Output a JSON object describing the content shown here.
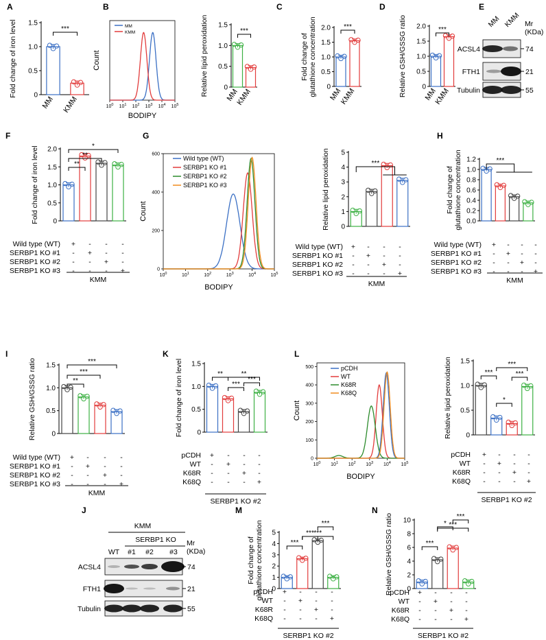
{
  "chart_data": [
    {
      "id": "A",
      "type": "bar",
      "ylabel": "Fold change of iron level",
      "yticks": [
        0,
        0.5,
        1.0,
        1.5
      ],
      "ylim": [
        0,
        1.5
      ],
      "categories": [
        "MM",
        "KMM"
      ],
      "values": [
        1.0,
        0.24
      ],
      "colors": [
        "#3a6fc4",
        "#e23b3b"
      ],
      "significance": [
        {
          "from": 0,
          "to": 1,
          "label": "***"
        }
      ]
    },
    {
      "id": "B_hist",
      "type": "line",
      "xlabel": "BODIPY",
      "ylabel": "Count",
      "legend": [
        {
          "name": "MM",
          "color": "#3a6fc4"
        },
        {
          "name": "KMM",
          "color": "#e23b3b"
        }
      ],
      "series": [
        {
          "name": "MM",
          "color": "#3a6fc4",
          "peak": 0.66,
          "width": 0.05
        },
        {
          "name": "KMM",
          "color": "#e23b3b",
          "peak": 0.52,
          "width": 0.05
        }
      ]
    },
    {
      "id": "B_bar",
      "type": "bar",
      "ylabel": "Relative lipid peroxidation",
      "yticks": [
        0,
        0.5,
        1.0,
        1.5
      ],
      "ylim": [
        0,
        1.5
      ],
      "categories": [
        "MM",
        "KMM"
      ],
      "values": [
        1.0,
        0.47
      ],
      "colors": [
        "#3cb043",
        "#e23b3b"
      ],
      "significance": [
        {
          "from": 0,
          "to": 1,
          "label": "***"
        }
      ]
    },
    {
      "id": "C",
      "type": "bar",
      "ylabel": "Fold change of glutathione concentration",
      "yticks": [
        0,
        0.5,
        1.0,
        1.5,
        2.0
      ],
      "ylim": [
        0,
        2.0
      ],
      "categories": [
        "MM",
        "KMM"
      ],
      "values": [
        1.0,
        1.55
      ],
      "colors": [
        "#3a6fc4",
        "#e23b3b"
      ],
      "significance": [
        {
          "from": 0,
          "to": 1,
          "label": "***"
        }
      ]
    },
    {
      "id": "D",
      "type": "bar",
      "ylabel": "Relative GSH/GSSG ratio",
      "yticks": [
        0,
        0.5,
        1.0,
        1.5,
        2.0
      ],
      "ylim": [
        0,
        2.0
      ],
      "categories": [
        "MM",
        "KMM"
      ],
      "values": [
        1.0,
        1.65
      ],
      "colors": [
        "#3a6fc4",
        "#e23b3b"
      ],
      "significance": [
        {
          "from": 0,
          "to": 1,
          "label": "***"
        }
      ]
    },
    {
      "id": "F",
      "type": "bar",
      "ylabel": "Fold change of iron level",
      "yticks": [
        0,
        0.5,
        1.0,
        1.5,
        2.0
      ],
      "ylim": [
        0,
        2.0
      ],
      "values": [
        1.0,
        1.8,
        1.6,
        1.55
      ],
      "colors": [
        "#3a6fc4",
        "#e23b3b",
        "#444444",
        "#3cb043"
      ],
      "significance": [
        {
          "from": 0,
          "to": 1,
          "label": "**"
        },
        {
          "from": 0,
          "to": 2,
          "label": "**"
        },
        {
          "from": 0,
          "to": 3,
          "label": "*"
        }
      ]
    },
    {
      "id": "G_hist",
      "type": "line",
      "xlabel": "BODIPY",
      "ylabel": "Count",
      "yticks": [
        0,
        200,
        400,
        600
      ],
      "legend": [
        {
          "name": "Wild type (WT)",
          "color": "#3a6fc4"
        },
        {
          "name": "SERBP1 KO #1",
          "color": "#e23b3b"
        },
        {
          "name": "SERBP1 KO #2",
          "color": "#2a8a2a"
        },
        {
          "name": "SERBP1 KO #3",
          "color": "#f08a1c"
        }
      ],
      "series": [
        {
          "name": "Wild type (WT)",
          "color": "#3a6fc4",
          "peak": 0.63,
          "width": 0.06,
          "height": 390
        },
        {
          "name": "SERBP1 KO #1",
          "color": "#e23b3b",
          "peak": 0.76,
          "width": 0.04,
          "height": 500
        },
        {
          "name": "SERBP1 KO #2",
          "color": "#2a8a2a",
          "peak": 0.79,
          "width": 0.035,
          "height": 575
        },
        {
          "name": "SERBP1 KO #3",
          "color": "#f08a1c",
          "peak": 0.8,
          "width": 0.035,
          "height": 580
        }
      ]
    },
    {
      "id": "G_bar",
      "type": "bar",
      "ylabel": "Relative lipid peroxidation",
      "yticks": [
        0,
        1,
        2,
        3,
        4,
        5
      ],
      "ylim": [
        0,
        5
      ],
      "values": [
        1.0,
        2.35,
        4.1,
        3.1
      ],
      "colors": [
        "#3cb043",
        "#444444",
        "#e23b3b",
        "#3a6fc4"
      ],
      "significance": [
        {
          "from": 0,
          "to": "2-3",
          "label": "***"
        }
      ]
    },
    {
      "id": "H",
      "type": "bar",
      "ylabel": "Fold change of glutathione concentration",
      "yticks": [
        0,
        0.2,
        0.4,
        0.6,
        0.8,
        1.0,
        1.2
      ],
      "ylim": [
        0,
        1.2
      ],
      "values": [
        1.0,
        0.68,
        0.47,
        0.35
      ],
      "colors": [
        "#3a6fc4",
        "#e23b3b",
        "#444444",
        "#3cb043"
      ],
      "significance": [
        {
          "from": 0,
          "to": "1-3",
          "label": "***"
        }
      ]
    },
    {
      "id": "I",
      "type": "bar",
      "ylabel": "Relative GSH/GSSG ratio",
      "yticks": [
        0,
        0.5,
        1.0,
        1.5
      ],
      "ylim": [
        0,
        1.5
      ],
      "values": [
        1.0,
        0.8,
        0.62,
        0.48
      ],
      "colors": [
        "#444444",
        "#3cb043",
        "#e23b3b",
        "#3a6fc4"
      ],
      "significance": [
        {
          "from": 0,
          "to": 1,
          "label": "**"
        },
        {
          "from": 0,
          "to": 2,
          "label": "***"
        },
        {
          "from": 0,
          "to": 3,
          "label": "***"
        }
      ]
    },
    {
      "id": "K",
      "type": "bar",
      "ylabel": "Fold change of iron level",
      "yticks": [
        0,
        0.5,
        1.0,
        1.5
      ],
      "ylim": [
        0,
        1.5
      ],
      "values": [
        1.0,
        0.73,
        0.45,
        0.87
      ],
      "colors": [
        "#3a6fc4",
        "#e23b3b",
        "#444444",
        "#3cb043"
      ],
      "significance": [
        {
          "from": 0,
          "to": 1,
          "label": "**"
        },
        {
          "from": 1,
          "to": 3,
          "label": "**"
        },
        {
          "from": 1,
          "to": 2,
          "label": "***"
        },
        {
          "from": 2,
          "to": 3,
          "label": "***"
        }
      ]
    },
    {
      "id": "L_hist",
      "type": "line",
      "xlabel": "BODIPY",
      "ylabel": "Count",
      "yticks": [
        0,
        100,
        200,
        300,
        400,
        500
      ],
      "legend": [
        {
          "name": "pCDH",
          "color": "#3a6fc4"
        },
        {
          "name": "WT",
          "color": "#e23b3b"
        },
        {
          "name": "K68R",
          "color": "#2a8a2a"
        },
        {
          "name": "K68Q",
          "color": "#f08a1c"
        }
      ],
      "series": [
        {
          "name": "pCDH",
          "color": "#3a6fc4",
          "peak": 0.79,
          "width": 0.035,
          "height": 465
        },
        {
          "name": "WT",
          "color": "#e23b3b",
          "peak": 0.71,
          "width": 0.035,
          "height": 400
        },
        {
          "name": "K68R",
          "color": "#2a8a2a",
          "peak": 0.62,
          "width": 0.045,
          "height": 285
        },
        {
          "name": "K68Q",
          "color": "#f08a1c",
          "peak": 0.8,
          "width": 0.035,
          "height": 470
        }
      ]
    },
    {
      "id": "L_bar",
      "type": "bar",
      "ylabel": "Relative lipid peroxidation",
      "yticks": [
        0,
        0.5,
        1.0,
        1.5
      ],
      "ylim": [
        0,
        1.5
      ],
      "values": [
        1.0,
        0.34,
        0.23,
        0.98
      ],
      "colors": [
        "#444444",
        "#3a6fc4",
        "#e23b3b",
        "#3cb043"
      ],
      "significance": [
        {
          "from": 0,
          "to": 1,
          "label": "***"
        },
        {
          "from": 1,
          "to": 3,
          "label": "***"
        },
        {
          "from": 2,
          "to": 3,
          "label": "***"
        },
        {
          "from": 1,
          "to": 2,
          "label": "*"
        }
      ]
    },
    {
      "id": "M",
      "type": "bar",
      "ylabel": "Fold change of glutathione concentration",
      "yticks": [
        0,
        1,
        2,
        3,
        4,
        5
      ],
      "ylim": [
        0,
        5
      ],
      "values": [
        1.0,
        2.65,
        4.25,
        1.0
      ],
      "colors": [
        "#3a6fc4",
        "#e23b3b",
        "#444444",
        "#3cb043"
      ],
      "significance": [
        {
          "from": 0,
          "to": 1,
          "label": "***"
        },
        {
          "from": 1,
          "to": 3,
          "label": "***"
        },
        {
          "from": 1,
          "to": 2,
          "label": "***"
        },
        {
          "from": 2,
          "to": 3,
          "label": "***"
        }
      ]
    },
    {
      "id": "N",
      "type": "bar",
      "ylabel": "Relative GSH/GSSG ratio",
      "yticks": [
        0,
        2,
        4,
        6,
        8,
        10
      ],
      "ylim": [
        0,
        10
      ],
      "values": [
        0.95,
        4.2,
        5.9,
        0.95
      ],
      "colors": [
        "#3a6fc4",
        "#444444",
        "#e23b3b",
        "#3cb043"
      ],
      "significance": [
        {
          "from": 0,
          "to": 1,
          "label": "***"
        },
        {
          "from": 1,
          "to": 3,
          "label": "***"
        },
        {
          "from": 1,
          "to": 2,
          "label": "*"
        },
        {
          "from": 2,
          "to": 3,
          "label": "***"
        }
      ]
    }
  ],
  "panel_letters": [
    "A",
    "B",
    "C",
    "D",
    "E",
    "F",
    "G",
    "H",
    "I",
    "J",
    "K",
    "L",
    "M",
    "N"
  ],
  "pm_tables": {
    "KO": {
      "rows": [
        "Wild type (WT)",
        "SERBP1 KO #1",
        "SERBP1 KO #2",
        "SERBP1 KO #3"
      ],
      "signs": [
        [
          "+",
          "-",
          "-",
          "-"
        ],
        [
          "-",
          "+",
          "-",
          "-"
        ],
        [
          "-",
          "-",
          "+",
          "-"
        ],
        [
          "-",
          "-",
          "-",
          "+"
        ]
      ],
      "footer": "KMM"
    },
    "MUT": {
      "rows": [
        "pCDH",
        "WT",
        "K68R",
        "K68Q"
      ],
      "signs": [
        [
          "+",
          "-",
          "-",
          "-"
        ],
        [
          "-",
          "+",
          "-",
          "-"
        ],
        [
          "-",
          "-",
          "+",
          "-"
        ],
        [
          "-",
          "-",
          "-",
          "+"
        ]
      ],
      "footer": "SERBP1 KO #2"
    }
  },
  "blot_E": {
    "lanes": [
      "MM",
      "KMM"
    ],
    "mr_label": "Mr\n(KDa)",
    "rows": [
      {
        "label": "ACSL4",
        "mw": "74"
      },
      {
        "label": "FTH1",
        "mw": "21"
      },
      {
        "label": "Tubulin",
        "mw": "55"
      }
    ]
  },
  "blot_J": {
    "title": "KMM",
    "subtitle": "SERBP1 KO",
    "lanes": [
      "WT",
      "#1",
      "#2",
      "#3"
    ],
    "mr_label": "Mr\n(KDa)",
    "rows": [
      {
        "label": "ACSL4",
        "mw": "74"
      },
      {
        "label": "FTH1",
        "mw": "21"
      },
      {
        "label": "Tubulin",
        "mw": "55"
      }
    ]
  },
  "hist_B_xlabel": "BODIPY",
  "blots_text": {
    "E_mr": "Mr",
    "E_kda": "(KDa)",
    "J_mr": "Mr",
    "J_kda": "(KDa)"
  }
}
